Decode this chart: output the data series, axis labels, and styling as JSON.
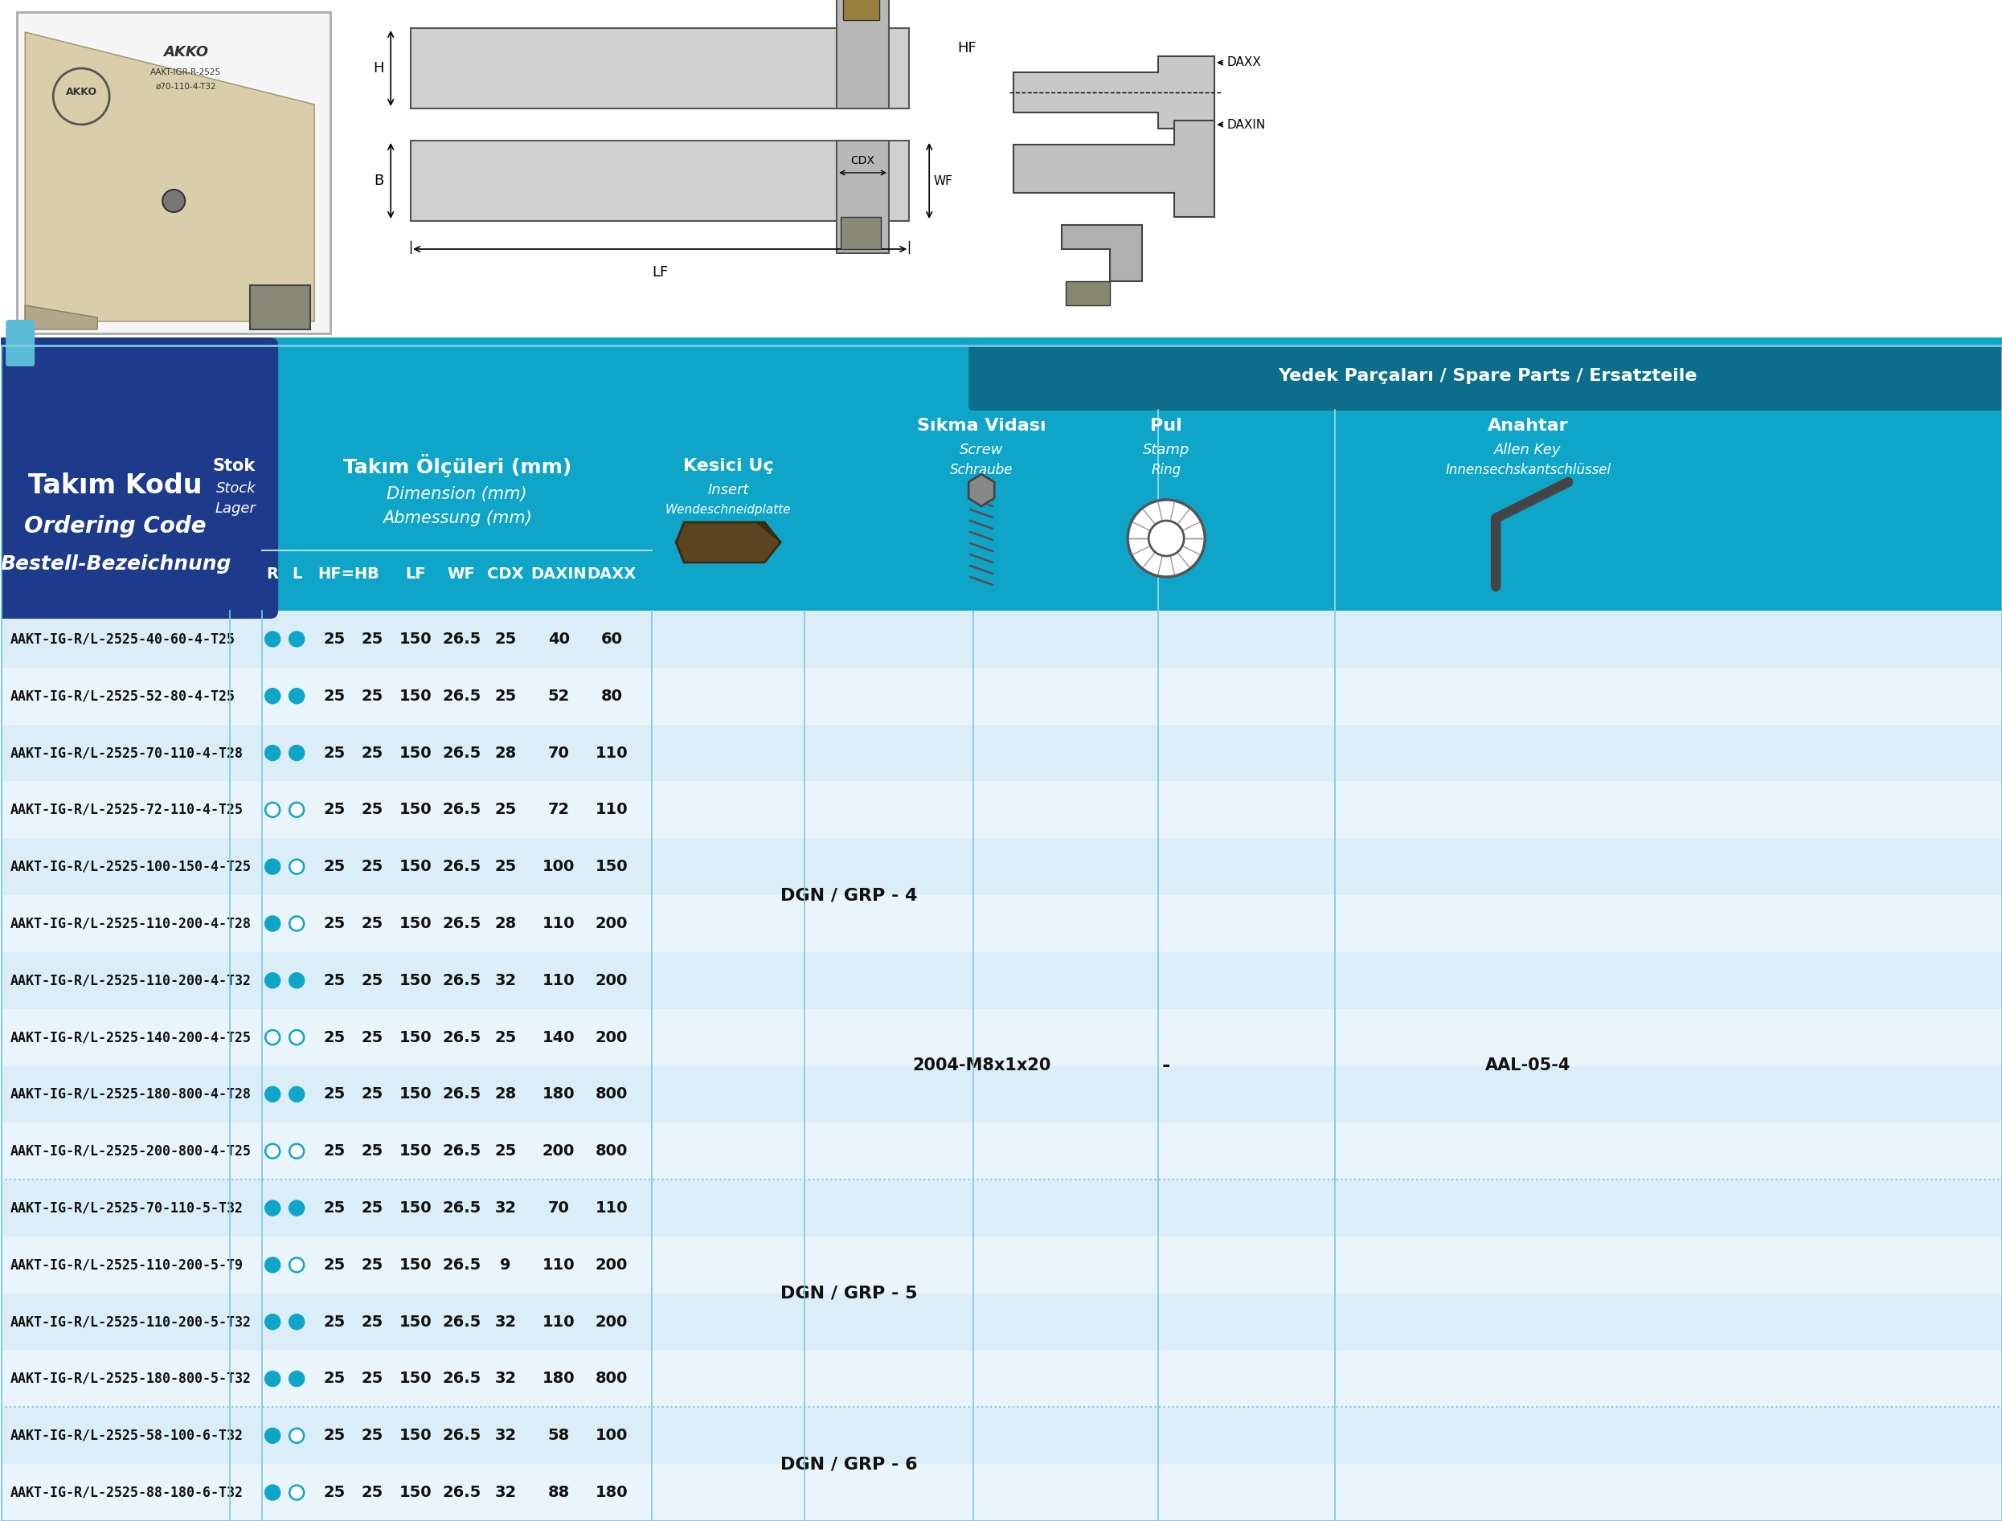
{
  "title_line1": "Takım Kodu",
  "title_line2": "Ordering Code",
  "title_line3": "Bestell-Bezeichnung",
  "header_dims_tr": "Takım Ölçüleri (mm)",
  "header_dims_en": "Dimension (mm)",
  "header_dims_de": "Abmessung (mm)",
  "header_insert_tr": "Kesici Uç",
  "header_insert_en": "Insert",
  "header_insert_de": "Wendeschneidplatte",
  "header_spare_tr": "Yedek Parçaları",
  "header_spare_en": "Spare Parts",
  "header_spare_de": "Ersatzteile",
  "header_screw_tr": "Sıkma Vidası",
  "header_screw_en": "Screw",
  "header_screw_de": "Schraube",
  "header_stamp_tr": "Pul",
  "header_stamp_en": "Stamp",
  "header_stamp_de": "Ring",
  "header_key_tr": "Anahtar",
  "header_key_en": "Allen Key",
  "header_key_de": "Innensechskantschlüssel",
  "rows": [
    {
      "code": "AAKT-IG-R/L-2525-40-60-4-T25",
      "R": true,
      "L": true,
      "HF": 25,
      "B": 25,
      "LF": 150,
      "WF": 26.5,
      "CDX": 25,
      "DAXIN": 40,
      "DAXX": 60,
      "group": "DGN / GRP - 4"
    },
    {
      "code": "AAKT-IG-R/L-2525-52-80-4-T25",
      "R": true,
      "L": true,
      "HF": 25,
      "B": 25,
      "LF": 150,
      "WF": 26.5,
      "CDX": 25,
      "DAXIN": 52,
      "DAXX": 80,
      "group": "DGN / GRP - 4"
    },
    {
      "code": "AAKT-IG-R/L-2525-70-110-4-T28",
      "R": true,
      "L": true,
      "HF": 25,
      "B": 25,
      "LF": 150,
      "WF": 26.5,
      "CDX": 28,
      "DAXIN": 70,
      "DAXX": 110,
      "group": "DGN / GRP - 4"
    },
    {
      "code": "AAKT-IG-R/L-2525-72-110-4-T25",
      "R": false,
      "L": false,
      "HF": 25,
      "B": 25,
      "LF": 150,
      "WF": 26.5,
      "CDX": 25,
      "DAXIN": 72,
      "DAXX": 110,
      "group": "DGN / GRP - 4"
    },
    {
      "code": "AAKT-IG-R/L-2525-100-150-4-T25",
      "R": true,
      "L": false,
      "HF": 25,
      "B": 25,
      "LF": 150,
      "WF": 26.5,
      "CDX": 25,
      "DAXIN": 100,
      "DAXX": 150,
      "group": "DGN / GRP - 4"
    },
    {
      "code": "AAKT-IG-R/L-2525-110-200-4-T28",
      "R": true,
      "L": false,
      "HF": 25,
      "B": 25,
      "LF": 150,
      "WF": 26.5,
      "CDX": 28,
      "DAXIN": 110,
      "DAXX": 200,
      "group": "DGN / GRP - 4"
    },
    {
      "code": "AAKT-IG-R/L-2525-110-200-4-T32",
      "R": true,
      "L": true,
      "HF": 25,
      "B": 25,
      "LF": 150,
      "WF": 26.5,
      "CDX": 32,
      "DAXIN": 110,
      "DAXX": 200,
      "group": "DGN / GRP - 4"
    },
    {
      "code": "AAKT-IG-R/L-2525-140-200-4-T25",
      "R": false,
      "L": false,
      "HF": 25,
      "B": 25,
      "LF": 150,
      "WF": 26.5,
      "CDX": 25,
      "DAXIN": 140,
      "DAXX": 200,
      "group": "DGN / GRP - 4"
    },
    {
      "code": "AAKT-IG-R/L-2525-180-800-4-T28",
      "R": true,
      "L": true,
      "HF": 25,
      "B": 25,
      "LF": 150,
      "WF": 26.5,
      "CDX": 28,
      "DAXIN": 180,
      "DAXX": 800,
      "group": "DGN / GRP - 4"
    },
    {
      "code": "AAKT-IG-R/L-2525-200-800-4-T25",
      "R": false,
      "L": false,
      "HF": 25,
      "B": 25,
      "LF": 150,
      "WF": 26.5,
      "CDX": 25,
      "DAXIN": 200,
      "DAXX": 800,
      "group": "DGN / GRP - 4"
    },
    {
      "code": "AAKT-IG-R/L-2525-70-110-5-T32",
      "R": true,
      "L": true,
      "HF": 25,
      "B": 25,
      "LF": 150,
      "WF": 26.5,
      "CDX": 32,
      "DAXIN": 70,
      "DAXX": 110,
      "group": "DGN / GRP - 5"
    },
    {
      "code": "AAKT-IG-R/L-2525-110-200-5-T9",
      "R": true,
      "L": false,
      "HF": 25,
      "B": 25,
      "LF": 150,
      "WF": 26.5,
      "CDX": 9,
      "DAXIN": 110,
      "DAXX": 200,
      "group": "DGN / GRP - 5"
    },
    {
      "code": "AAKT-IG-R/L-2525-110-200-5-T32",
      "R": true,
      "L": true,
      "HF": 25,
      "B": 25,
      "LF": 150,
      "WF": 26.5,
      "CDX": 32,
      "DAXIN": 110,
      "DAXX": 200,
      "group": "DGN / GRP - 5"
    },
    {
      "code": "AAKT-IG-R/L-2525-180-800-5-T32",
      "R": true,
      "L": true,
      "HF": 25,
      "B": 25,
      "LF": 150,
      "WF": 26.5,
      "CDX": 32,
      "DAXIN": 180,
      "DAXX": 800,
      "group": "DGN / GRP - 5"
    },
    {
      "code": "AAKT-IG-R/L-2525-58-100-6-T32",
      "R": true,
      "L": false,
      "HF": 25,
      "B": 25,
      "LF": 150,
      "WF": 26.5,
      "CDX": 32,
      "DAXIN": 58,
      "DAXX": 100,
      "group": "DGN / GRP - 6"
    },
    {
      "code": "AAKT-IG-R/L-2525-88-180-6-T32",
      "R": true,
      "L": false,
      "HF": 25,
      "B": 25,
      "LF": 150,
      "WF": 26.5,
      "CDX": 32,
      "DAXIN": 88,
      "DAXX": 180,
      "group": "DGN / GRP - 6"
    }
  ],
  "screw": "2004-M8x1x20",
  "stamp": "-",
  "key": "AAL-05-4",
  "col_dark_blue": "#1e3a8a",
  "mid_blue": "#0ea5c8",
  "light_blue1": "#dbeef7",
  "light_blue2": "#eaf5fb",
  "white": "#ffffff",
  "black": "#111111",
  "border_color": "#7ec8e3",
  "spare_bg": "#0d8ab0"
}
